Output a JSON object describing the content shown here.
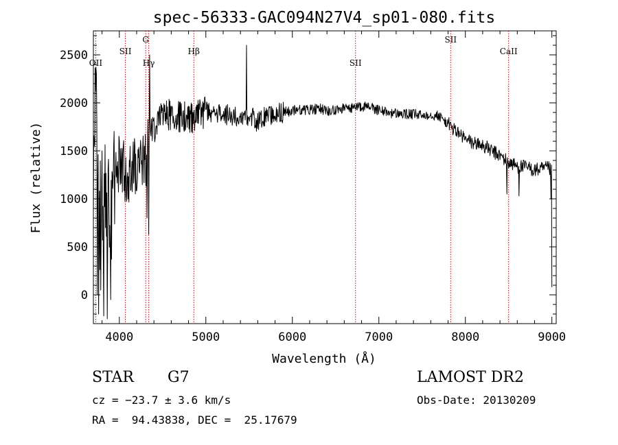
{
  "chart_data": {
    "type": "line",
    "title": "spec-56333-GAC094N27V4_sp01-080.fits",
    "xlabel": "Wavelength (Å)",
    "ylabel": "Flux (relative)",
    "xlim": [
      3700,
      9050
    ],
    "ylim": [
      -300,
      2750
    ],
    "x_ticks": [
      4000,
      5000,
      6000,
      7000,
      8000,
      9000
    ],
    "y_ticks": [
      0,
      500,
      1000,
      1500,
      2000,
      2500
    ],
    "grid": false,
    "line_color": "#000000",
    "marker_color": "#cc0000",
    "spectrum_anchors": [
      [
        3700,
        1000
      ],
      [
        3730,
        2300
      ],
      [
        3760,
        700
      ],
      [
        3800,
        900
      ],
      [
        3850,
        1000
      ],
      [
        3900,
        800
      ],
      [
        3950,
        1300
      ],
      [
        4000,
        1400
      ],
      [
        4050,
        1300
      ],
      [
        4100,
        1100
      ],
      [
        4150,
        1350
      ],
      [
        4200,
        1300
      ],
      [
        4250,
        1400
      ],
      [
        4300,
        1350
      ],
      [
        4340,
        1650
      ],
      [
        4380,
        1750
      ],
      [
        4420,
        1750
      ],
      [
        4450,
        1850
      ],
      [
        4500,
        1880
      ],
      [
        4600,
        1880
      ],
      [
        4700,
        1850
      ],
      [
        4800,
        1840
      ],
      [
        4861,
        1830
      ],
      [
        4900,
        1880
      ],
      [
        5000,
        1900
      ],
      [
        5100,
        1900
      ],
      [
        5200,
        1880
      ],
      [
        5300,
        1870
      ],
      [
        5400,
        1860
      ],
      [
        5500,
        1870
      ],
      [
        5600,
        1800
      ],
      [
        5700,
        1860
      ],
      [
        5800,
        1880
      ],
      [
        5900,
        1900
      ],
      [
        6000,
        1920
      ],
      [
        6100,
        1930
      ],
      [
        6200,
        1930
      ],
      [
        6300,
        1940
      ],
      [
        6400,
        1920
      ],
      [
        6500,
        1930
      ],
      [
        6600,
        1940
      ],
      [
        6700,
        1950
      ],
      [
        6800,
        1960
      ],
      [
        6900,
        1950
      ],
      [
        7000,
        1920
      ],
      [
        7100,
        1900
      ],
      [
        7200,
        1890
      ],
      [
        7300,
        1880
      ],
      [
        7400,
        1880
      ],
      [
        7500,
        1870
      ],
      [
        7600,
        1880
      ],
      [
        7700,
        1860
      ],
      [
        7800,
        1780
      ],
      [
        7900,
        1700
      ],
      [
        8000,
        1620
      ],
      [
        8100,
        1580
      ],
      [
        8200,
        1560
      ],
      [
        8300,
        1500
      ],
      [
        8400,
        1450
      ],
      [
        8500,
        1380
      ],
      [
        8600,
        1340
      ],
      [
        8700,
        1330
      ],
      [
        8800,
        1300
      ],
      [
        8900,
        1310
      ],
      [
        8950,
        1320
      ],
      [
        8990,
        1300
      ]
    ],
    "noise_regions": [
      {
        "from": 3700,
        "to": 3950,
        "amplitude": 600
      },
      {
        "from": 3950,
        "to": 4350,
        "amplitude": 330
      },
      {
        "from": 4350,
        "to": 5000,
        "amplitude": 170
      },
      {
        "from": 5000,
        "to": 5900,
        "amplitude": 110
      },
      {
        "from": 5900,
        "to": 7800,
        "amplitude": 55
      },
      {
        "from": 7800,
        "to": 9000,
        "amplitude": 75
      }
    ],
    "spikes": [
      [
        3735,
        2300
      ],
      [
        3745,
        0
      ],
      [
        3760,
        -200
      ],
      [
        3785,
        50
      ],
      [
        3800,
        1500
      ],
      [
        3820,
        -220
      ],
      [
        3860,
        -250
      ],
      [
        3900,
        -50
      ],
      [
        4320,
        800
      ],
      [
        4340,
        630
      ],
      [
        4350,
        2500
      ],
      [
        5470,
        2600
      ],
      [
        8480,
        1050
      ],
      [
        8620,
        1030
      ],
      [
        8990,
        1000
      ],
      [
        9000,
        80
      ]
    ],
    "line_markers": [
      {
        "wavelength": 3727,
        "label": "OII",
        "tier": 2
      },
      {
        "wavelength": 4070,
        "label": "SII",
        "tier": 1
      },
      {
        "wavelength": 4305,
        "label": "G",
        "tier": 0
      },
      {
        "wavelength": 4340,
        "label": "Hγ",
        "tier": 2
      },
      {
        "wavelength": 4861,
        "label": "Hβ",
        "tier": 1
      },
      {
        "wavelength": 6730,
        "label": "SII",
        "tier": 2
      },
      {
        "wavelength": 7830,
        "label": "SII",
        "tier": 0
      },
      {
        "wavelength": 8500,
        "label": "CaII",
        "tier": 1
      }
    ]
  },
  "info": {
    "class": "STAR",
    "subclass": "G7",
    "survey": "LAMOST DR2",
    "cz": "cz = −23.7 ± 3.6 km/s",
    "obs_date": "Obs-Date: 20130209",
    "coords": "RA =  94.43838, DEC =  25.17679"
  }
}
